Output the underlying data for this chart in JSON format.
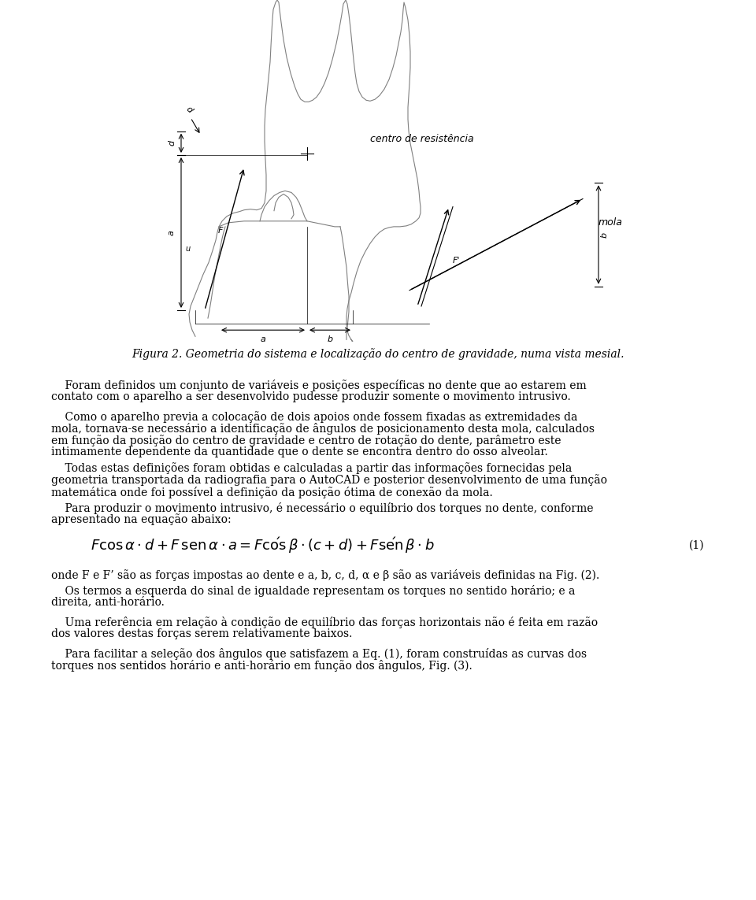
{
  "figure_caption": "Figura 2. Geometria do sistema e localização do centro de gravidade, numa vista mesial.",
  "paragraphs": [
    "    Foram definidos um conjunto de variáveis e posições específicas no dente que ao estarem em contato com o aparelho a ser desenvolvido pudesse produzir somente o movimento intrusivo.",
    "    Como o aparelho previa a colocação de dois apoios onde fossem fixadas as extremidades da mola, tornava-se necessário a identificação de ângulos de posicionamento desta mola, calculados em função da posição do centro de gravidade e centro de rotação do dente, parâmetro este intimamente dependente da quantidade que o dente se encontra dentro do osso alveolar.",
    "    Todas estas definições foram obtidas e calculadas a partir das informações fornecidas pela geometria transportada da radiografia para o AutoCAD e posterior desenvolvimento de uma função matemática onde foi possível a definição da posição ótima de conexão da mola.",
    "    Para produzir o movimento intrusivo, é necessário o equilíbrio dos torques no dente, conforme apresentado na equação abaixo:"
  ],
  "equation": "$F\\cos\\alpha\\cdot d + F\\operatorname{sen}\\alpha\\cdot a = F'\\cos\\beta\\cdot(c+d)+F'\\operatorname{sen}\\beta\\cdot b$",
  "eq_number": "(1)",
  "paragraph_after_eq": "onde F e F’ são as forças impostas ao dente e a, b, c, d, α e β são as variáveis definidas na Fig. (2).",
  "paragraphs2": [
    "    Os termos a esquerda do sinal de igualdade representam os torques no sentido horário; e a direita, anti-horário.",
    "    Uma referência em relação à condição de equilíbrio das forças horizontais não é feita em razão dos valores destas forças serem relativamente baixos.",
    "    Para facilitar a seleção dos ângulos que satisfazem a Eq. (1), foram construídas as curvas dos torques nos sentidos horário e anti-horário em função dos ângulos, Fig. (3)."
  ],
  "bg_color": "#ffffff",
  "text_color": "#000000",
  "diagram_line_color": "#808080",
  "diagram_dim_color": "#404040"
}
